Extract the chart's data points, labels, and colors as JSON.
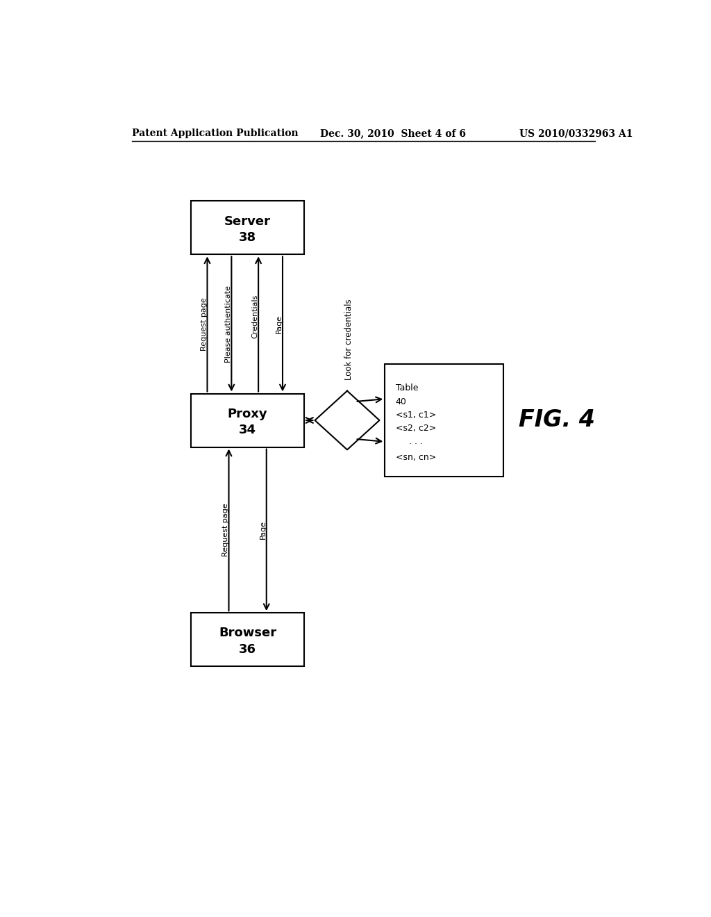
{
  "header_left": "Patent Application Publication",
  "header_mid": "Dec. 30, 2010  Sheet 4 of 6",
  "header_right": "US 2010/0332963 A1",
  "fig_label": "FIG. 4",
  "bg_color": "#ffffff",
  "box_edge": "#000000",
  "text_color": "#000000",
  "font_size_header": 10,
  "font_size_box": 13,
  "font_size_label": 9,
  "font_size_fig": 22
}
